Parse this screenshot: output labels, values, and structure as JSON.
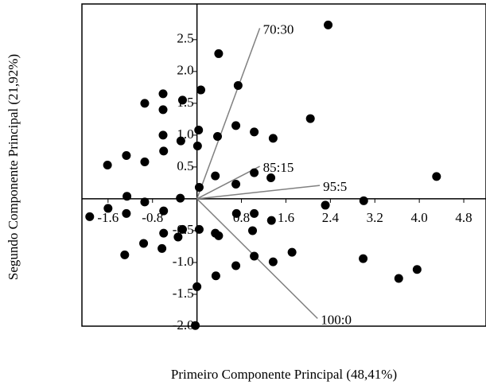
{
  "chart_data": {
    "type": "scatter",
    "xlabel": "Primeiro Componente Principal (48,41%)",
    "ylabel": "Segundo Componente Principal (21,92%)",
    "xlim": [
      -2.07,
      5.2
    ],
    "ylim": [
      -2.0,
      3.06
    ],
    "xticks": [
      -1.6,
      -0.8,
      0.8,
      1.6,
      2.4,
      3.2,
      {
        "value": 4,
        "label": "4.0"
      },
      4.8
    ],
    "yticks": [
      2.5,
      {
        "value": 2,
        "label": "2.0"
      },
      1.5,
      {
        "value": 1,
        "label": "1.0"
      },
      0.5,
      -0.5,
      {
        "value": -1,
        "label": "-1.0"
      },
      -1.5,
      {
        "value": -2,
        "label": "-2.0"
      }
    ],
    "color": "#000000",
    "vector_color": "#808080",
    "x": [
      2.36,
      0.39,
      0.74,
      0.07,
      -0.94,
      -0.61,
      -0.26,
      -0.61,
      0.7,
      1.03,
      1.37,
      2.04,
      0.03,
      0.37,
      -0.61,
      -0.29,
      0.01,
      -0.6,
      -1.27,
      -1.61,
      -0.94,
      0.33,
      1.03,
      1.33,
      0.7,
      4.31,
      0.04,
      -0.3,
      -1.26,
      -0.94,
      3.0,
      2.31,
      -1.6,
      -1.93,
      -1.27,
      -0.6,
      0.71,
      1.03,
      1.34,
      -0.6,
      -0.34,
      0.04,
      0.33,
      0.39,
      1.0,
      -0.26,
      -0.96,
      -0.63,
      -1.3,
      1.03,
      1.37,
      1.71,
      0.7,
      0.34,
      0,
      2.99,
      3.63,
      3.96,
      -0.03
    ],
    "y": [
      2.73,
      2.28,
      1.78,
      1.71,
      1.5,
      1.65,
      1.55,
      1.4,
      1.15,
      1.05,
      0.95,
      1.26,
      1.08,
      0.98,
      1.0,
      0.91,
      0.83,
      0.75,
      0.68,
      0.53,
      0.58,
      0.36,
      0.41,
      0.33,
      0.23,
      0.35,
      0.18,
      0.01,
      0.04,
      -0.05,
      -0.03,
      -0.1,
      -0.15,
      -0.28,
      -0.23,
      -0.19,
      -0.23,
      -0.23,
      -0.34,
      -0.54,
      -0.6,
      -0.48,
      -0.54,
      -0.58,
      -0.5,
      -0.48,
      -0.7,
      -0.78,
      -0.88,
      -0.9,
      -0.99,
      -0.84,
      -1.05,
      -1.21,
      -1.38,
      -0.94,
      -1.25,
      -1.11,
      -1.99
    ],
    "vectors": [
      {
        "label": "70:30",
        "x": 1.13,
        "y": 2.68
      },
      {
        "label": "85:15",
        "x": 1.13,
        "y": 0.51
      },
      {
        "label": "95:5",
        "x": 2.21,
        "y": 0.21
      },
      {
        "label": "100:0",
        "x": 2.17,
        "y": -1.88
      }
    ]
  }
}
